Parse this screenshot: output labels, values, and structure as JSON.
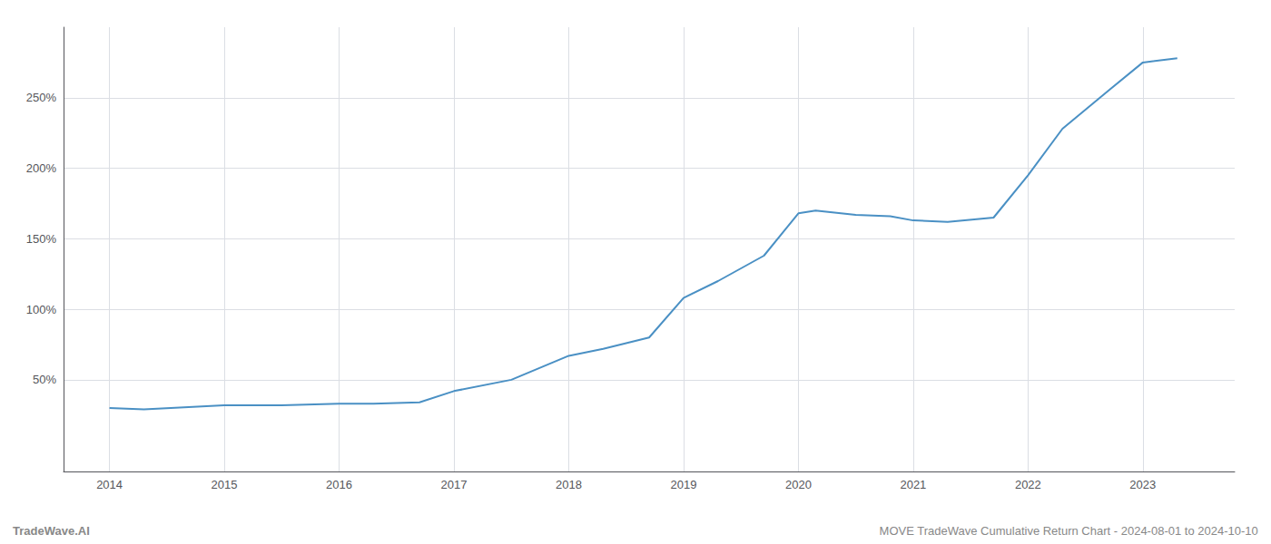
{
  "chart_data": {
    "type": "line",
    "x": [
      2014.0,
      2014.3,
      2015.0,
      2015.5,
      2016.0,
      2016.3,
      2016.7,
      2017.0,
      2017.5,
      2018.0,
      2018.3,
      2018.7,
      2019.0,
      2019.3,
      2019.7,
      2020.0,
      2020.15,
      2020.5,
      2020.8,
      2021.0,
      2021.3,
      2021.7,
      2022.0,
      2022.3,
      2022.7,
      2023.0,
      2023.3
    ],
    "values": [
      30,
      29,
      32,
      32,
      33,
      33,
      34,
      42,
      50,
      67,
      72,
      80,
      108,
      120,
      138,
      168,
      170,
      167,
      166,
      163,
      162,
      165,
      195,
      228,
      255,
      275,
      278
    ],
    "color": "#4a90c4",
    "xlim": [
      2013.6,
      2023.8
    ],
    "xticks": [
      2014,
      2015,
      2016,
      2017,
      2018,
      2019,
      2020,
      2021,
      2022,
      2023
    ],
    "ylim": [
      -15,
      300
    ],
    "yticks": [
      {
        "value": 50,
        "label": "50%"
      },
      {
        "value": 100,
        "label": "100%"
      },
      {
        "value": 150,
        "label": "150%"
      },
      {
        "value": 200,
        "label": "200%"
      },
      {
        "value": 250,
        "label": "250%"
      }
    ],
    "grid": true,
    "annotations": [
      "TradeWave.AI",
      "MOVE TradeWave Cumulative Return Chart - 2024-08-01 to 2024-10-10"
    ]
  }
}
